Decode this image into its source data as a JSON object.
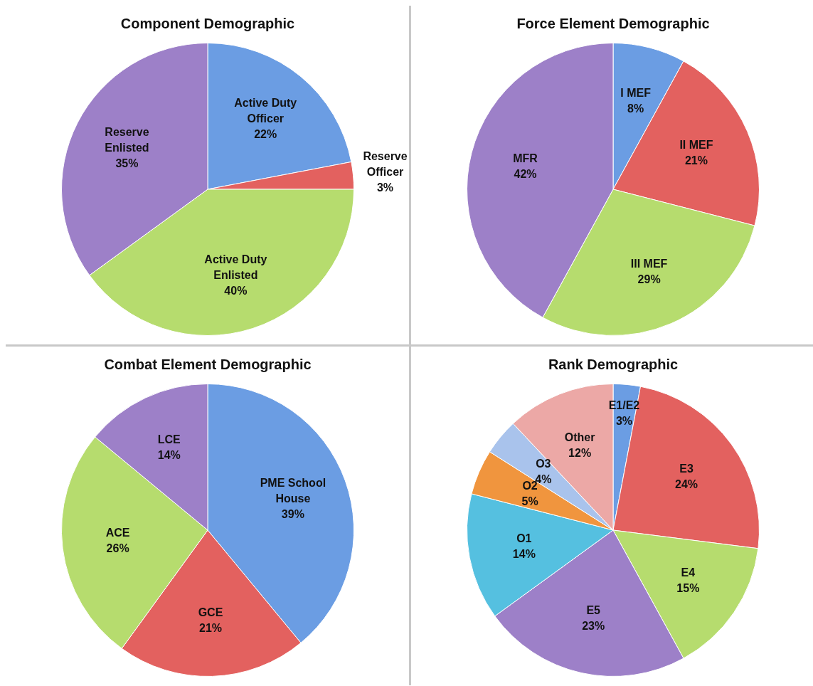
{
  "chart_data": [
    {
      "type": "pie",
      "title": "Component Demographic",
      "categories": [
        "Active Duty Officer",
        "Reserve Officer",
        "Active Duty Enlisted",
        "Reserve Enlisted"
      ],
      "values": [
        22,
        3,
        40,
        35
      ],
      "value_labels": [
        "22%",
        "3%",
        "40%",
        "35%"
      ],
      "colors": [
        "#6b9de3",
        "#e3615f",
        "#b6dc6e",
        "#9d80c8"
      ],
      "legend": false
    },
    {
      "type": "pie",
      "title": "Force Element Demographic",
      "categories": [
        "I MEF",
        "II MEF",
        "III MEF",
        "MFR"
      ],
      "values": [
        8,
        21,
        29,
        42
      ],
      "value_labels": [
        "8%",
        "21%",
        "29%",
        "42%"
      ],
      "colors": [
        "#6b9de3",
        "#e3615f",
        "#b6dc6e",
        "#9d80c8"
      ],
      "legend": false
    },
    {
      "type": "pie",
      "title": "Combat Element Demographic",
      "categories": [
        "PME School House",
        "GCE",
        "ACE",
        "LCE"
      ],
      "values": [
        39,
        21,
        26,
        14
      ],
      "value_labels": [
        "39%",
        "21%",
        "26%",
        "14%"
      ],
      "colors": [
        "#6b9de3",
        "#e3615f",
        "#b6dc6e",
        "#9d80c8"
      ],
      "legend": false
    },
    {
      "type": "pie",
      "title": "Rank Demographic",
      "categories": [
        "E1/E2",
        "E3",
        "E4",
        "E5",
        "O1",
        "O2",
        "O3",
        "Other"
      ],
      "values": [
        3,
        24,
        15,
        23,
        14,
        5,
        4,
        12
      ],
      "value_labels": [
        "3%",
        "24%",
        "15%",
        "23%",
        "14%",
        "5%",
        "4%",
        "12%"
      ],
      "colors": [
        "#6b9de3",
        "#e3615f",
        "#b6dc6e",
        "#9d80c8",
        "#55c0e0",
        "#f0953e",
        "#a9c3ec",
        "#eca8a6"
      ],
      "legend": false
    }
  ]
}
